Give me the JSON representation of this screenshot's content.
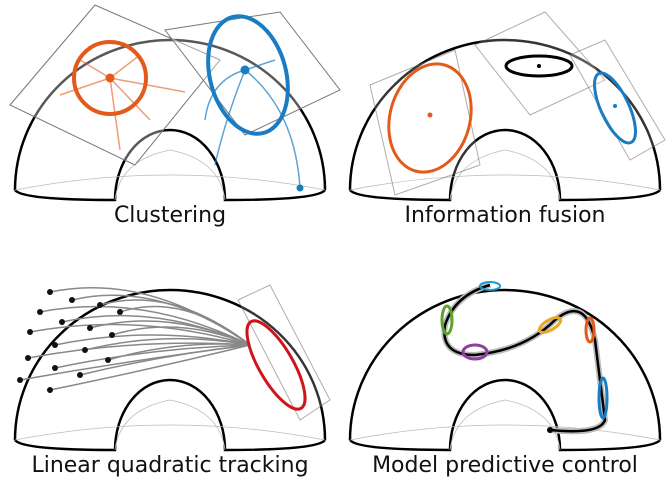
{
  "panels": [
    {
      "caption": "Clustering"
    },
    {
      "caption": "Information fusion"
    },
    {
      "caption": "Linear quadratic tracking"
    },
    {
      "caption": "Model predictive control"
    }
  ]
}
